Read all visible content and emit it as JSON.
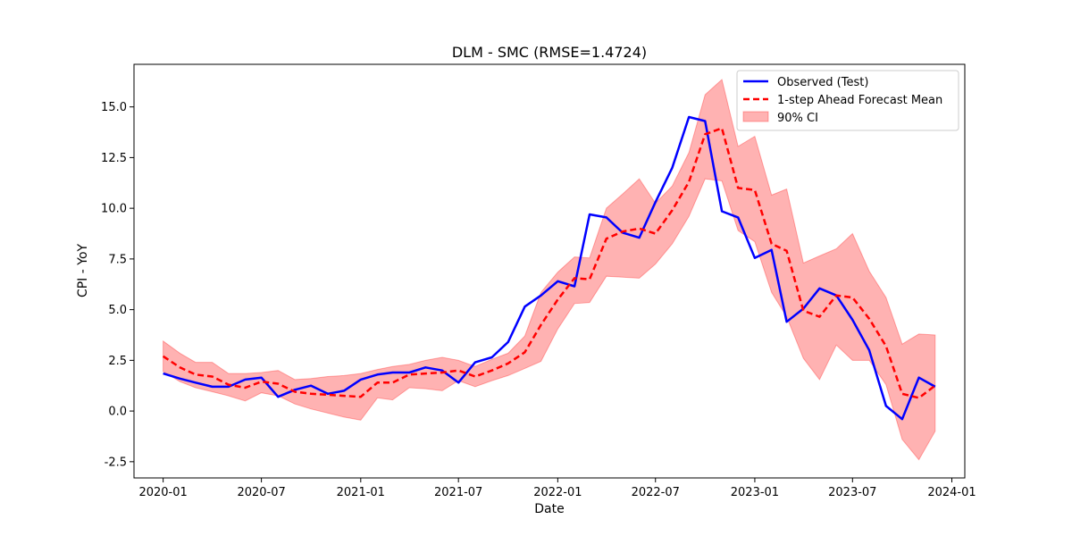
{
  "chart_data": {
    "type": "line",
    "title": "DLM - SMC (RMSE=1.4724)",
    "xlabel": "Date",
    "ylabel": "CPI - YoY",
    "xlim": [
      "2019-11-08",
      "2024-01-25"
    ],
    "ylim": [
      -3.3,
      17.1
    ],
    "x_ticks": [
      "2020-01",
      "2020-07",
      "2021-01",
      "2021-07",
      "2022-01",
      "2022-07",
      "2023-01",
      "2023-07",
      "2024-01"
    ],
    "y_ticks": [
      -2.5,
      0.0,
      2.5,
      5.0,
      7.5,
      10.0,
      12.5,
      15.0
    ],
    "grid": false,
    "legend_position": "top-right",
    "dates": [
      "2020-01-01",
      "2020-02-01",
      "2020-03-01",
      "2020-04-01",
      "2020-05-01",
      "2020-06-01",
      "2020-07-01",
      "2020-08-01",
      "2020-09-01",
      "2020-10-01",
      "2020-11-01",
      "2020-12-01",
      "2021-01-01",
      "2021-02-01",
      "2021-03-01",
      "2021-04-01",
      "2021-05-01",
      "2021-06-01",
      "2021-07-01",
      "2021-08-01",
      "2021-09-01",
      "2021-10-01",
      "2021-11-01",
      "2021-12-01",
      "2022-01-01",
      "2022-02-01",
      "2022-03-01",
      "2022-04-01",
      "2022-05-01",
      "2022-06-01",
      "2022-07-01",
      "2022-08-01",
      "2022-09-01",
      "2022-10-01",
      "2022-11-01",
      "2022-12-01",
      "2023-01-01",
      "2023-02-01",
      "2023-03-01",
      "2023-04-01",
      "2023-05-01",
      "2023-06-01",
      "2023-07-01",
      "2023-08-01",
      "2023-09-01",
      "2023-10-01",
      "2023-11-01",
      "2023-12-01"
    ],
    "series": [
      {
        "name": "Observed (Test)",
        "kind": "line",
        "color": "#0000ff",
        "values": [
          1.85,
          1.6,
          1.4,
          1.2,
          1.2,
          1.55,
          1.65,
          0.7,
          1.05,
          1.25,
          0.85,
          1.0,
          1.55,
          1.8,
          1.9,
          1.9,
          2.15,
          2.0,
          1.4,
          2.4,
          2.65,
          3.4,
          5.15,
          5.7,
          6.4,
          6.15,
          9.7,
          9.55,
          8.8,
          8.55,
          10.3,
          12.0,
          14.5,
          14.3,
          9.85,
          9.55,
          7.55,
          7.95,
          4.4,
          5.05,
          6.05,
          5.7,
          4.5,
          3.0,
          0.25,
          -0.4,
          1.65,
          1.2
        ]
      },
      {
        "name": "1-step Ahead Forecast Mean",
        "kind": "dashed-line",
        "color": "#ff0000",
        "values": [
          2.7,
          2.15,
          1.8,
          1.7,
          1.3,
          1.15,
          1.45,
          1.35,
          0.95,
          0.85,
          0.8,
          0.75,
          0.7,
          1.4,
          1.4,
          1.8,
          1.85,
          1.9,
          2.0,
          1.7,
          2.0,
          2.35,
          2.9,
          4.25,
          5.5,
          6.55,
          6.5,
          8.5,
          8.85,
          9.0,
          8.75,
          9.9,
          11.3,
          13.65,
          13.95,
          11.0,
          10.9,
          8.25,
          7.9,
          4.95,
          4.65,
          5.7,
          5.6,
          4.55,
          3.2,
          0.85,
          0.65,
          1.25
        ]
      }
    ],
    "band": {
      "name": "90% CI",
      "color": "#ff0000",
      "opacity": 0.3,
      "upper": [
        3.45,
        2.85,
        2.4,
        2.4,
        1.85,
        1.85,
        1.9,
        2.0,
        1.55,
        1.6,
        1.7,
        1.75,
        1.85,
        2.05,
        2.2,
        2.3,
        2.5,
        2.65,
        2.5,
        2.2,
        2.55,
        2.85,
        3.7,
        5.85,
        6.85,
        7.6,
        7.55,
        10.0,
        10.7,
        11.45,
        10.25,
        11.1,
        12.75,
        15.6,
        16.35,
        13.05,
        13.55,
        10.65,
        10.95,
        7.3,
        7.65,
        8.0,
        8.75,
        6.9,
        5.6,
        3.3,
        3.8,
        3.75
      ],
      "lower": [
        1.95,
        1.45,
        1.15,
        0.95,
        0.75,
        0.5,
        0.9,
        0.75,
        0.35,
        0.1,
        -0.1,
        -0.3,
        -0.45,
        0.65,
        0.55,
        1.15,
        1.1,
        1.0,
        1.5,
        1.2,
        1.5,
        1.75,
        2.1,
        2.45,
        4.05,
        5.3,
        5.35,
        6.65,
        6.6,
        6.55,
        7.25,
        8.25,
        9.6,
        11.45,
        11.35,
        8.9,
        8.35,
        5.85,
        4.65,
        2.6,
        1.55,
        3.25,
        2.5,
        2.5,
        1.3,
        -1.4,
        -2.4,
        -1.0
      ]
    }
  }
}
